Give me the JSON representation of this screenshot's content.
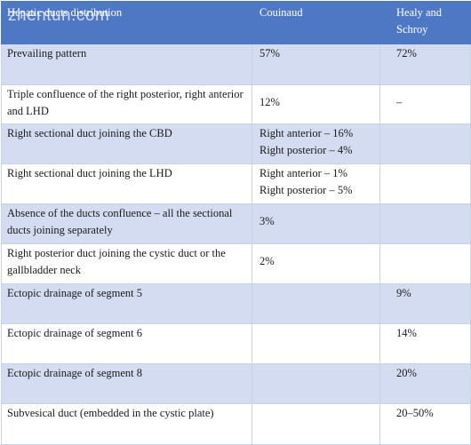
{
  "watermark": "zhentun.com",
  "header": {
    "col1": "Hepatic ducts distribution",
    "col2": "Couinaud",
    "col3": "Healy and Schroy"
  },
  "rows": [
    {
      "label": [
        "Prevailing pattern"
      ],
      "couinaud": [
        "57%"
      ],
      "healy": [
        "72%"
      ]
    },
    {
      "label": [
        "Triple confluence of the right posterior, right anterior",
        "and LHD"
      ],
      "couinaud": [
        "12%"
      ],
      "healy": [
        "–"
      ]
    },
    {
      "label": [
        "Right sectional duct joining the CBD"
      ],
      "couinaud": [
        "Right anterior – 16%",
        "Right posterior – 4%"
      ],
      "healy": [
        ""
      ]
    },
    {
      "label": [
        "Right sectional duct joining the LHD"
      ],
      "couinaud": [
        "Right anterior – 1%",
        "Right posterior – 5%"
      ],
      "healy": [
        ""
      ]
    },
    {
      "label": [
        "Absence of the ducts confluence – all the sectional",
        "ducts joining separately"
      ],
      "couinaud": [
        "3%"
      ],
      "healy": [
        ""
      ]
    },
    {
      "label": [
        "Right posterior duct joining the cystic duct or the",
        "gallbladder neck"
      ],
      "couinaud": [
        "2%"
      ],
      "healy": [
        ""
      ]
    },
    {
      "label": [
        "Ectopic drainage of segment 5"
      ],
      "couinaud": [
        ""
      ],
      "healy": [
        "9%"
      ]
    },
    {
      "label": [
        "Ectopic drainage of segment 6"
      ],
      "couinaud": [
        ""
      ],
      "healy": [
        "14%"
      ]
    },
    {
      "label": [
        "Ectopic drainage of segment 8"
      ],
      "couinaud": [
        ""
      ],
      "healy": [
        "20%"
      ]
    },
    {
      "label": [
        "Subvesical duct (embedded in the cystic plate)"
      ],
      "couinaud": [
        ""
      ],
      "healy": [
        "20–50%"
      ]
    }
  ]
}
